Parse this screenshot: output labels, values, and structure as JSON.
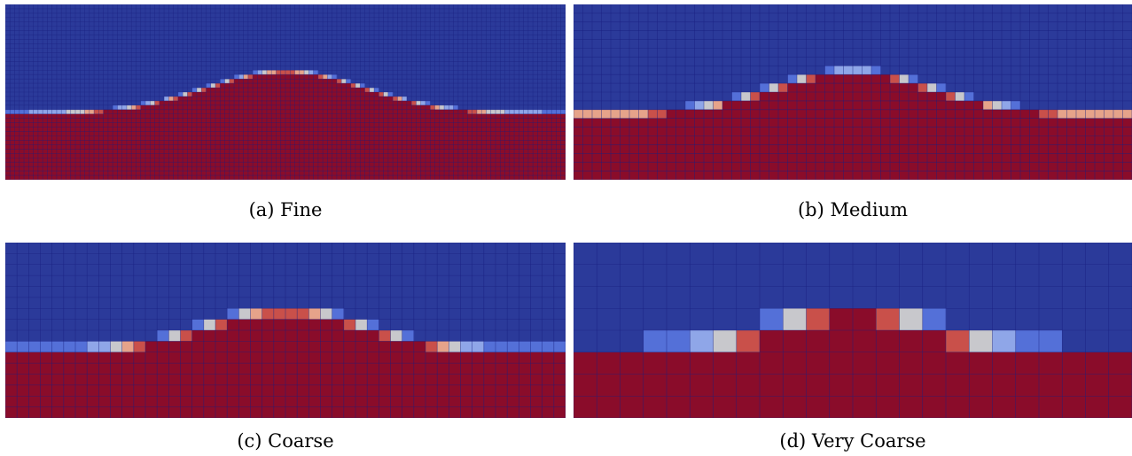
{
  "figure": {
    "colors": {
      "air": "#2b3a9a",
      "water": "#8a0c2a",
      "grid_line": "#1a1f80",
      "interface_levels": [
        "#2b3a9a",
        "#5470d8",
        "#8fa6e8",
        "#c8c8cc",
        "#e6a38a",
        "#c9504a",
        "#8a0c2a"
      ]
    },
    "panels": [
      {
        "id": "a",
        "caption": "(a) Fine",
        "cols": 120,
        "rows": 40,
        "mesh": "fine"
      },
      {
        "id": "b",
        "caption": "(b) Medium",
        "cols": 60,
        "rows": 20,
        "mesh": "medium"
      },
      {
        "id": "c",
        "caption": "(c) Coarse",
        "cols": 48,
        "rows": 16,
        "mesh": "coarse"
      },
      {
        "id": "d",
        "caption": "(d) Very Coarse",
        "cols": 24,
        "rows": 8,
        "mesh": "very coarse"
      }
    ],
    "interface_shape": "gaussian-hump"
  }
}
